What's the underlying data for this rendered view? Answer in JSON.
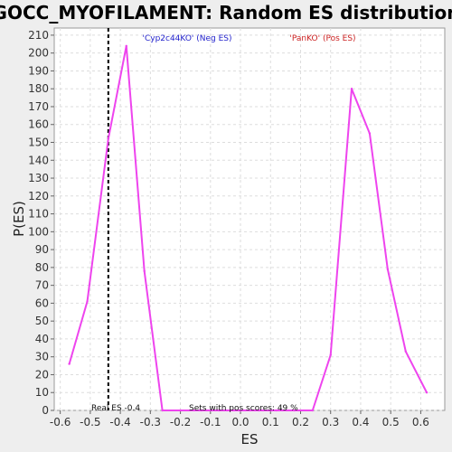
{
  "chart_data": {
    "type": "line",
    "title": "GOCC_MYOFILAMENT: Random ES distribution",
    "xlabel": "ES",
    "ylabel": "P(ES)",
    "xlim": [
      -0.62,
      0.68
    ],
    "ylim": [
      0,
      214
    ],
    "xticks": [
      -0.6,
      -0.5,
      -0.4,
      -0.3,
      -0.2,
      -0.1,
      0.0,
      0.1,
      0.2,
      0.3,
      0.4,
      0.5,
      0.6
    ],
    "xtick_labels": [
      "-0.6",
      "-0.5",
      "-0.4",
      "-0.3",
      "-0.2",
      "-0.1",
      "0.0",
      "0.1",
      "0.2",
      "0.3",
      "0.4",
      "0.5",
      "0.6"
    ],
    "yticks": [
      0,
      10,
      20,
      30,
      40,
      50,
      60,
      70,
      80,
      90,
      100,
      110,
      120,
      130,
      140,
      150,
      160,
      170,
      180,
      190,
      200,
      210
    ],
    "ytick_labels": [
      "0",
      "10",
      "20",
      "30",
      "40",
      "50",
      "60",
      "70",
      "80",
      "90",
      "100",
      "110",
      "120",
      "130",
      "140",
      "150",
      "160",
      "170",
      "180",
      "190",
      "200",
      "210"
    ],
    "grid": true,
    "series": [
      {
        "color": "#ee44ee",
        "x": [
          -0.57,
          -0.51,
          -0.44,
          -0.38,
          -0.32,
          -0.26,
          -0.2,
          -0.13,
          -0.07,
          0.0,
          0.06,
          0.12,
          0.18,
          0.24,
          0.3,
          0.37,
          0.43,
          0.49,
          0.55,
          0.62
        ],
        "y": [
          26,
          61,
          152,
          204,
          78,
          0,
          0,
          0,
          0,
          0,
          0,
          0,
          0,
          0,
          31,
          180,
          155,
          79,
          33,
          10
        ]
      }
    ],
    "real_es": -0.44,
    "annotations": {
      "neg_label": "'Cyp2c44KO' (Neg ES)",
      "pos_label": "'PanKO' (Pos ES)",
      "real_es_label": "Real ES -0.4",
      "pos_scores_label": "Sets with pos scores: 49 %"
    },
    "colors": {
      "neg_label": "#2222cc",
      "pos_label": "#cc2222",
      "line": "#ee44ee",
      "plot_bg": "#ffffff",
      "page_bg": "#eeeeee"
    }
  }
}
